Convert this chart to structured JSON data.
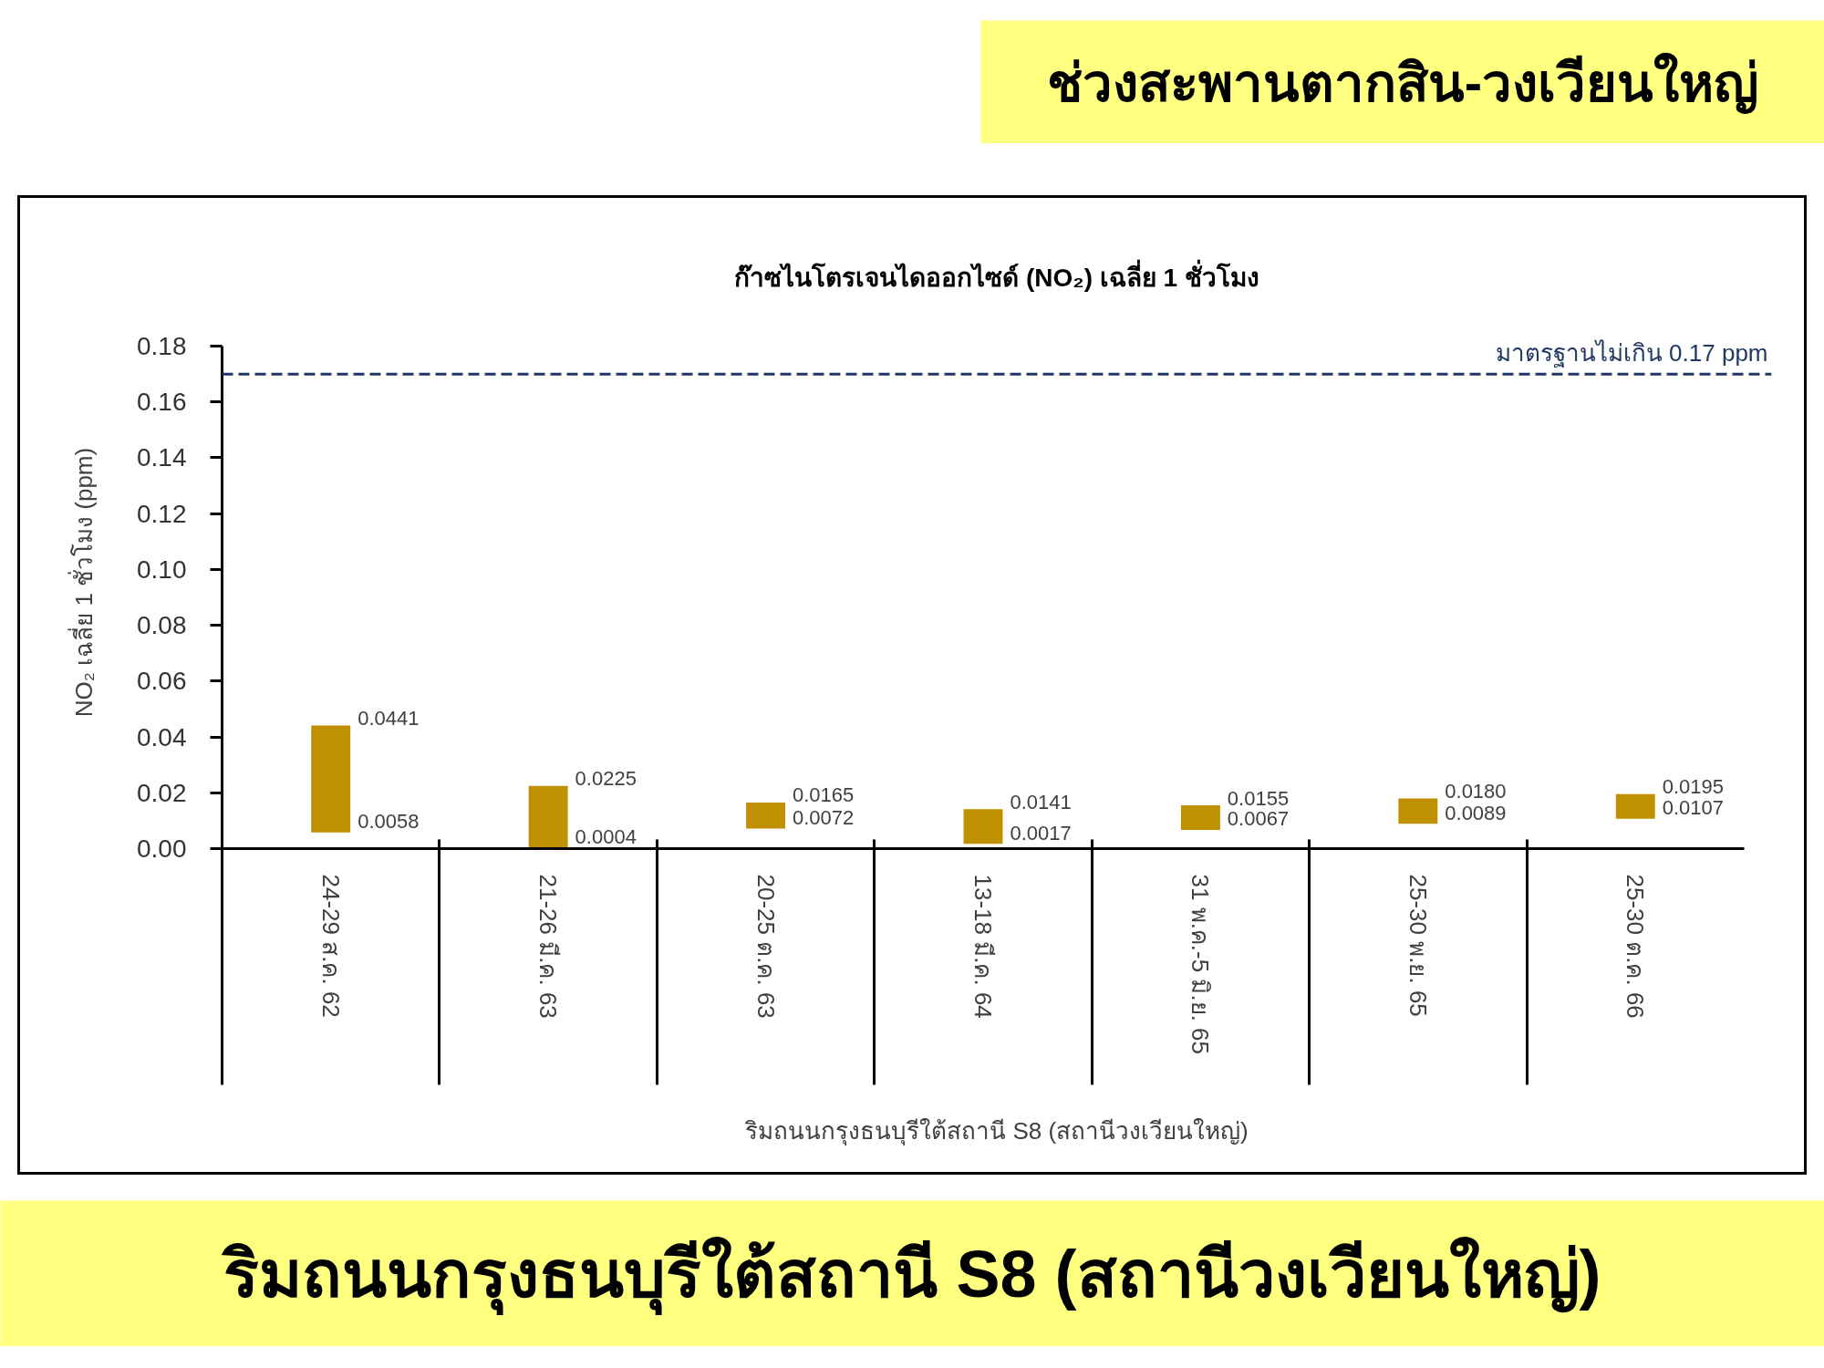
{
  "chart_data": {
    "type": "bar",
    "title": "ก๊าซไนโตรเจนไดออกไซด์ (NO₂) เฉลี่ย 1 ชั่วโมง",
    "xlabel": "ริมถนนกรุงธนบุรีใต้สถานี S8 (สถานีวงเวียนใหญ่)",
    "ylabel": "NO₂ เฉลี่ย 1 ชั่วโมง (ppm)",
    "categories": [
      "24-29 ส.ค. 62",
      "21-26 มี.ค. 63",
      "20-25 ต.ค. 63",
      "13-18 มี.ค. 64",
      "31 พ.ค.-5 มิ.ย. 65",
      "25-30 พ.ย. 65",
      "25-30 ต.ค. 66"
    ],
    "base": [
      0.0058,
      0.0004,
      0.0072,
      0.0017,
      0.0067,
      0.0089,
      0.0107
    ],
    "values": [
      0.0383,
      0.0221,
      0.0093,
      0.0124,
      0.0088,
      0.0091,
      0.0088
    ],
    "color": "#bf9000",
    "ylim": [
      0,
      0.18
    ],
    "yticks": [
      {
        "value": 0,
        "label": "0.00"
      },
      0.02,
      0.04,
      0.06,
      0.08,
      {
        "value": 0.1,
        "label": "0.10"
      },
      0.12,
      0.14,
      0.16,
      0.18
    ],
    "ref_lines": [
      {
        "axis": "y",
        "value": 0.17,
        "label": "มาตรฐานไม่เกิน 0.17 ppm",
        "color": "#203864",
        "line_style": "dashed"
      }
    ],
    "annotations": [
      "ช่วงสะพานตากสิน-วงเวียนใหญ่",
      "ริมถนนกรุงธนบุรีใต้สถานี S8 (สถานีวงเวียนใหญ่)",
      {
        "text": "0.0441",
        "x": "24-29 ส.ค. 62",
        "y": 0.0441
      },
      {
        "text": "0.0058",
        "x": "24-29 ส.ค. 62",
        "y": 0.0058
      },
      {
        "text": "0.0225",
        "x": "21-26 มี.ค. 63",
        "y": 0.0225
      },
      {
        "text": "0.0004",
        "x": "21-26 มี.ค. 63",
        "y": 0.0004
      },
      {
        "text": "0.0165",
        "x": "20-25 ต.ค. 63",
        "y": 0.0165
      },
      {
        "text": "0.0072",
        "x": "20-25 ต.ค. 63",
        "y": 0.0072
      },
      {
        "text": "0.0141",
        "x": "13-18 มี.ค. 64",
        "y": 0.0141
      },
      {
        "text": "0.0017",
        "x": "13-18 มี.ค. 64",
        "y": 0.0017
      },
      {
        "text": "0.0155",
        "x": "31 พ.ค.-5 มิ.ย. 65",
        "y": 0.0155
      },
      {
        "text": "0.0067",
        "x": "31 พ.ค.-5 มิ.ย. 65",
        "y": 0.0067
      },
      {
        "text": "0.0180",
        "x": "25-30 พ.ย. 65",
        "y": 0.018
      },
      {
        "text": "0.0089",
        "x": "25-30 พ.ย. 65",
        "y": 0.0089
      },
      {
        "text": "0.0195",
        "x": "25-30 ต.ค. 66",
        "y": 0.0195
      },
      {
        "text": "0.0107",
        "x": "25-30 ต.ค. 66",
        "y": 0.0107
      }
    ]
  }
}
